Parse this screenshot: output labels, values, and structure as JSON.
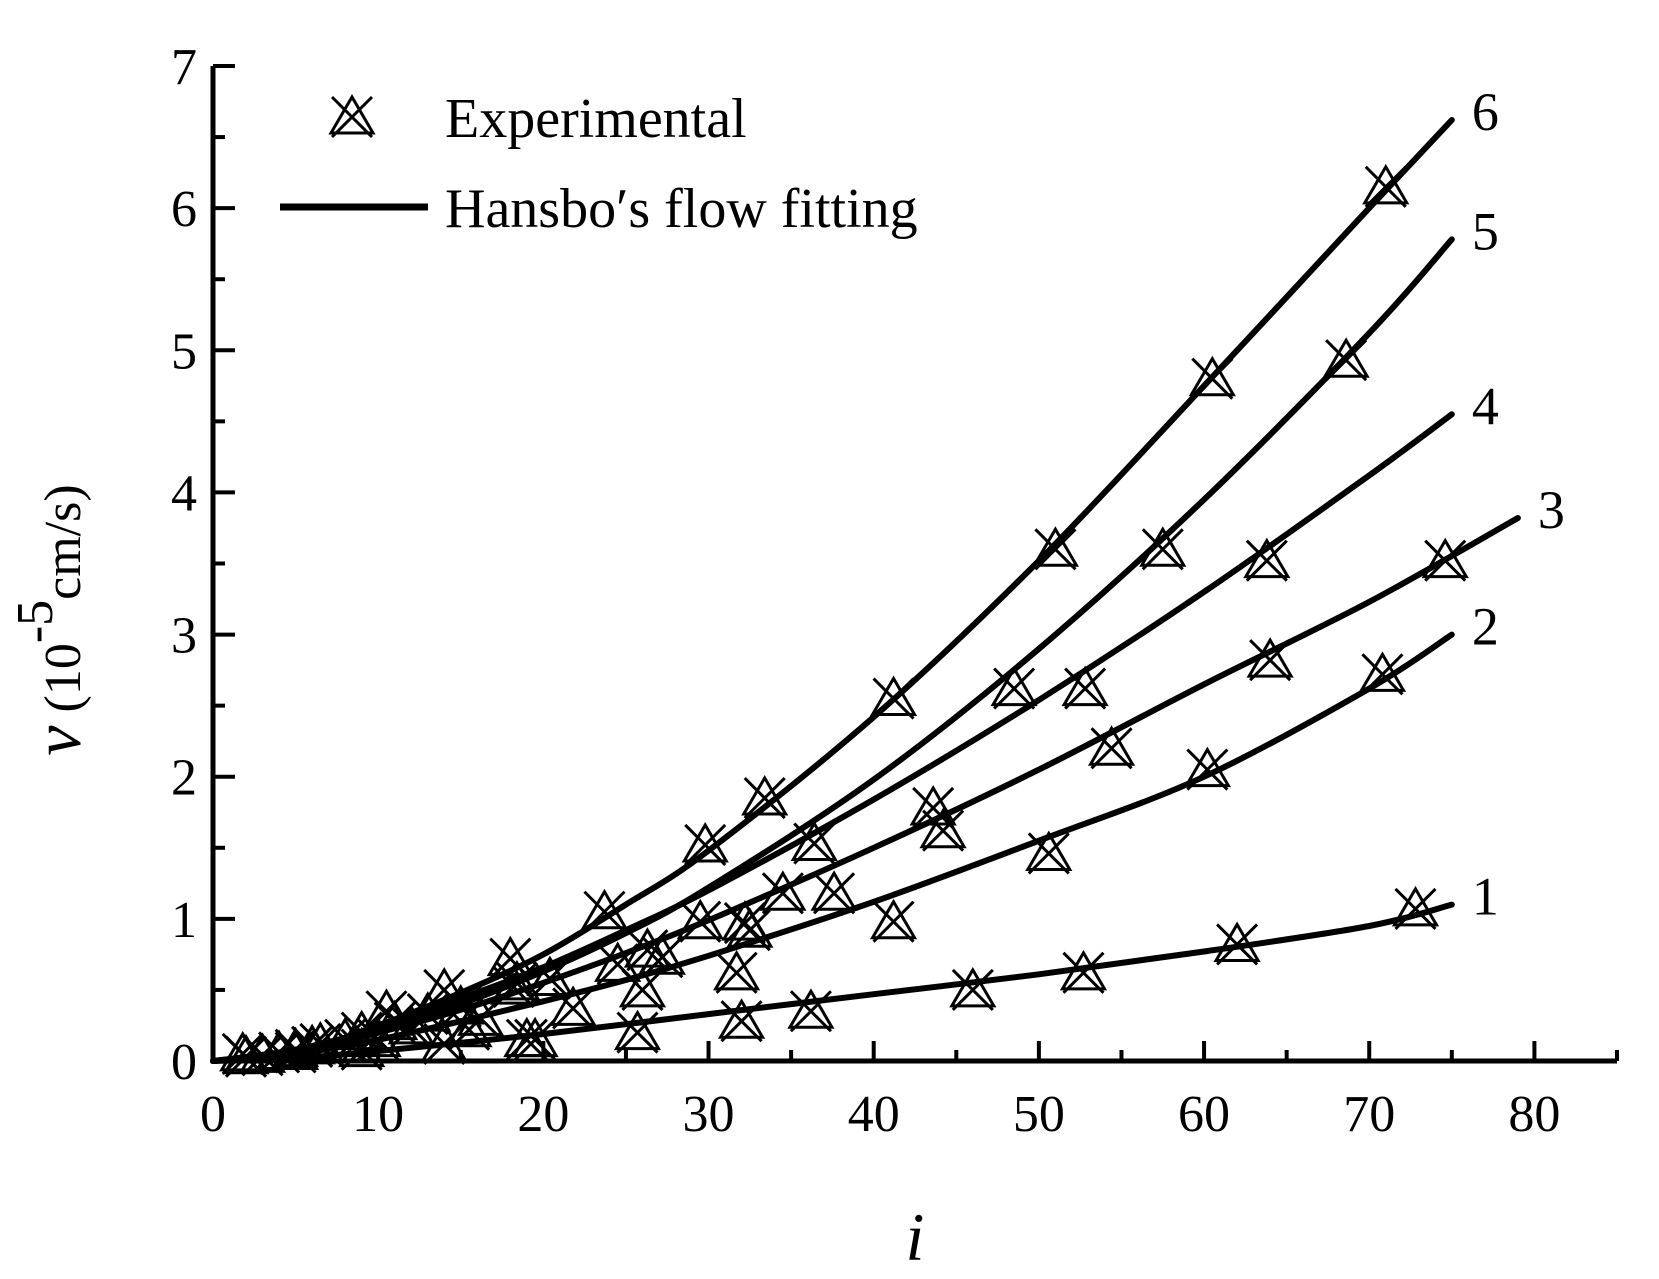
{
  "chart_data": {
    "type": "line",
    "xlabel": "i",
    "ylabel": {
      "symbol": "v",
      "open": " (10",
      "exponent": "-5",
      "unit": "cm/s)"
    },
    "xlim": [
      0,
      85
    ],
    "ylim": [
      0,
      7
    ],
    "x_ticks": [
      "0",
      "10",
      "20",
      "30",
      "40",
      "50",
      "60",
      "70",
      "80"
    ],
    "y_ticks": [
      "0",
      "1",
      "2",
      "3",
      "4",
      "5",
      "6",
      "7"
    ],
    "grid": false,
    "legend": {
      "position": "top-left",
      "entries": [
        {
          "label": "Experimental",
          "marker": "cross-triangle"
        },
        {
          "label": "Hansbo′s flow fitting",
          "marker": "line"
        }
      ]
    },
    "series": [
      {
        "label": "1",
        "fit_end": [
          75,
          1.1
        ],
        "fit": [
          [
            0,
            0
          ],
          [
            5,
            0.02
          ],
          [
            10,
            0.07
          ],
          [
            20,
            0.19
          ],
          [
            30,
            0.33
          ],
          [
            40,
            0.47
          ],
          [
            50,
            0.61
          ],
          [
            60,
            0.77
          ],
          [
            70,
            0.95
          ],
          [
            75,
            1.1
          ]
        ],
        "points": [
          [
            2,
            0.03
          ],
          [
            5,
            0.06
          ],
          [
            9,
            0.08
          ],
          [
            14,
            0.12
          ],
          [
            19,
            0.15
          ],
          [
            25.7,
            0.2
          ],
          [
            32,
            0.28
          ],
          [
            36.2,
            0.35
          ],
          [
            46,
            0.5
          ],
          [
            52.7,
            0.62
          ],
          [
            62,
            0.82
          ],
          [
            72.8,
            1.07
          ]
        ]
      },
      {
        "label": "2",
        "fit_end": [
          75,
          3.0
        ],
        "fit": [
          [
            0,
            0
          ],
          [
            5,
            0.05
          ],
          [
            10,
            0.15
          ],
          [
            15,
            0.28
          ],
          [
            20,
            0.42
          ],
          [
            25,
            0.57
          ],
          [
            30,
            0.74
          ],
          [
            40,
            1.12
          ],
          [
            50,
            1.55
          ],
          [
            60,
            2.0
          ],
          [
            70,
            2.62
          ],
          [
            75,
            3.0
          ]
        ],
        "points": [
          [
            3,
            0.04
          ],
          [
            6,
            0.1
          ],
          [
            10,
            0.15
          ],
          [
            15.5,
            0.22
          ],
          [
            19.5,
            0.15
          ],
          [
            26,
            0.5
          ],
          [
            31.7,
            0.62
          ],
          [
            41.2,
            0.98
          ],
          [
            50.6,
            1.46
          ],
          [
            60.2,
            2.05
          ],
          [
            70.8,
            2.72
          ]
        ]
      },
      {
        "label": "3",
        "fit_end": [
          79,
          3.82
        ],
        "fit": [
          [
            0,
            0
          ],
          [
            5,
            0.07
          ],
          [
            10,
            0.2
          ],
          [
            15,
            0.36
          ],
          [
            20,
            0.55
          ],
          [
            25,
            0.76
          ],
          [
            30,
            0.99
          ],
          [
            40,
            1.5
          ],
          [
            50,
            2.05
          ],
          [
            60,
            2.65
          ],
          [
            70,
            3.23
          ],
          [
            79,
            3.82
          ]
        ],
        "points": [
          [
            4,
            0.06
          ],
          [
            8,
            0.15
          ],
          [
            12,
            0.24
          ],
          [
            16.2,
            0.3
          ],
          [
            21.8,
            0.37
          ],
          [
            26.3,
            0.78
          ],
          [
            32.2,
            0.97
          ],
          [
            37.6,
            1.18
          ],
          [
            44.2,
            1.62
          ],
          [
            54.4,
            2.2
          ],
          [
            64,
            2.82
          ],
          [
            74.6,
            3.52
          ]
        ]
      },
      {
        "label": "4",
        "fit_end": [
          75,
          4.55
        ],
        "fit": [
          [
            0,
            0
          ],
          [
            5,
            0.08
          ],
          [
            10,
            0.23
          ],
          [
            15,
            0.44
          ],
          [
            20,
            0.66
          ],
          [
            25,
            0.92
          ],
          [
            30,
            1.2
          ],
          [
            40,
            1.84
          ],
          [
            50,
            2.54
          ],
          [
            60,
            3.3
          ],
          [
            70,
            4.12
          ],
          [
            75,
            4.55
          ]
        ],
        "points": [
          [
            5,
            0.08
          ],
          [
            9,
            0.2
          ],
          [
            13,
            0.33
          ],
          [
            18.4,
            0.55
          ],
          [
            20.4,
            0.58
          ],
          [
            27.2,
            0.73
          ],
          [
            32.5,
            0.92
          ],
          [
            34.5,
            1.18
          ],
          [
            43.6,
            1.78
          ],
          [
            52.8,
            2.62
          ],
          [
            63.8,
            3.52
          ]
        ]
      },
      {
        "label": "5",
        "fit_end": [
          75,
          5.78
        ],
        "fit": [
          [
            0,
            0
          ],
          [
            5,
            0.07
          ],
          [
            10,
            0.2
          ],
          [
            15,
            0.4
          ],
          [
            20,
            0.63
          ],
          [
            25,
            0.9
          ],
          [
            30,
            1.22
          ],
          [
            40,
            1.98
          ],
          [
            50,
            2.9
          ],
          [
            60,
            3.95
          ],
          [
            70,
            5.12
          ],
          [
            75,
            5.78
          ]
        ],
        "points": [
          [
            6,
            0.1
          ],
          [
            11,
            0.27
          ],
          [
            15,
            0.38
          ],
          [
            18.2,
            0.52
          ],
          [
            24.5,
            0.68
          ],
          [
            29.5,
            0.98
          ],
          [
            36.4,
            1.53
          ],
          [
            48.5,
            2.62
          ],
          [
            57.5,
            3.6
          ],
          [
            68.6,
            4.93
          ]
        ]
      },
      {
        "label": "6",
        "fit_end": [
          75,
          6.62
        ],
        "fit": [
          [
            0,
            0
          ],
          [
            5,
            0.06
          ],
          [
            10,
            0.25
          ],
          [
            15,
            0.48
          ],
          [
            20,
            0.75
          ],
          [
            25,
            1.1
          ],
          [
            30,
            1.48
          ],
          [
            40,
            2.42
          ],
          [
            50,
            3.52
          ],
          [
            60,
            4.75
          ],
          [
            70,
            6.0
          ],
          [
            75,
            6.62
          ]
        ],
        "points": [
          [
            1.8,
            0.05
          ],
          [
            6.5,
            0.12
          ],
          [
            10.5,
            0.35
          ],
          [
            14,
            0.5
          ],
          [
            18,
            0.72
          ],
          [
            23.7,
            1.05
          ],
          [
            29.8,
            1.52
          ],
          [
            33.4,
            1.85
          ],
          [
            41.2,
            2.55
          ],
          [
            51,
            3.6
          ],
          [
            60.5,
            4.8
          ],
          [
            71,
            6.15
          ]
        ]
      }
    ]
  }
}
